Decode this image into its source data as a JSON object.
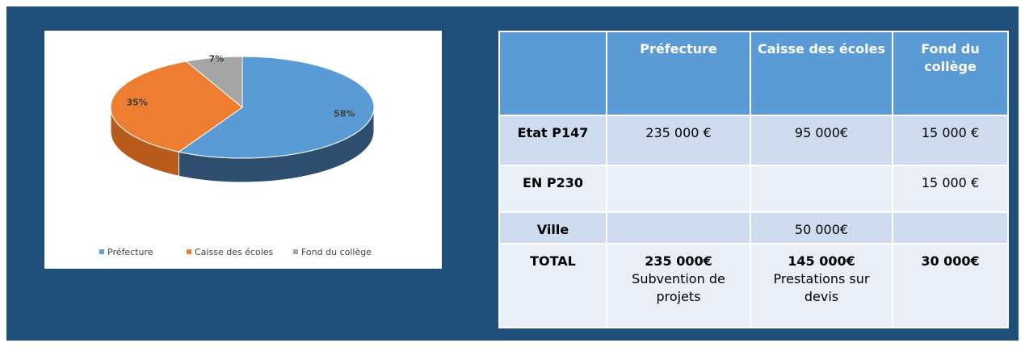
{
  "chart_data": {
    "type": "pie",
    "categories": [
      "Préfecture",
      "Caisse des écoles",
      "Fond du collège"
    ],
    "values": [
      58,
      35,
      7
    ],
    "value_labels": [
      "58%",
      "35%",
      "7%"
    ],
    "colors": [
      "#5b9bd5",
      "#ed7d31",
      "#a5a5a5"
    ],
    "side_colors": [
      "#2d4e6e",
      "#b85a1c",
      "#7a7a7a"
    ],
    "legend": "bottom"
  },
  "table": {
    "columns": [
      "Préfecture",
      "Caisse des écoles",
      "Fond du collège"
    ],
    "rows": [
      {
        "label": "Etat P147",
        "cells": [
          "235 000 €",
          "95 000€",
          "15 000 €"
        ]
      },
      {
        "label": "EN P230",
        "cells": [
          null,
          null,
          "15 000 €"
        ]
      },
      {
        "label": "Ville",
        "cells": [
          null,
          "50 000€",
          null
        ]
      },
      {
        "label": "TOTAL",
        "cells": [
          {
            "amount": "235 000€",
            "note": "Subvention de projets"
          },
          {
            "amount": "145 000€",
            "note": "Prestations sur devis"
          },
          {
            "amount": "30 000€"
          }
        ]
      }
    ]
  }
}
